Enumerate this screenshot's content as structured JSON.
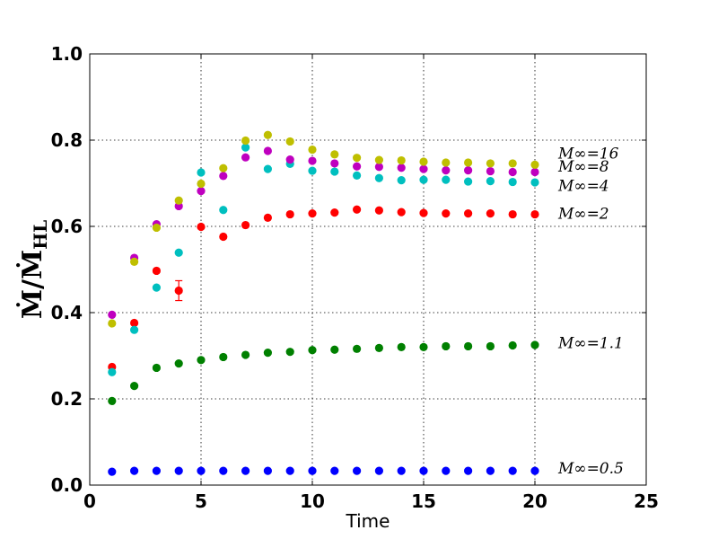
{
  "chart_data": {
    "type": "scatter",
    "xlabel": "Time",
    "ylabel": "Ṁ/Ṁ_HL",
    "ylabel_main": "Ṁ/Ṁ",
    "ylabel_sub": "HL",
    "xlim": [
      0,
      25
    ],
    "ylim": [
      0.0,
      1.0
    ],
    "xticks": [
      0,
      5,
      10,
      15,
      20,
      25
    ],
    "xtick_labels": [
      "0",
      "5",
      "10",
      "15",
      "20",
      "25"
    ],
    "yticks": [
      0.0,
      0.2,
      0.4,
      0.6,
      0.8,
      1.0
    ],
    "ytick_labels": [
      "0.0",
      "0.2",
      "0.4",
      "0.6",
      "0.8",
      "1.0"
    ],
    "grid": true,
    "x": [
      1,
      2,
      3,
      4,
      5,
      6,
      7,
      8,
      9,
      10,
      11,
      12,
      13,
      14,
      15,
      16,
      17,
      18,
      19,
      20
    ],
    "series": [
      {
        "name": "M∞=0.5",
        "color": "#0000ff",
        "label_y": 0.04,
        "values": [
          0.031,
          0.033,
          0.033,
          0.033,
          0.033,
          0.033,
          0.033,
          0.033,
          0.033,
          0.033,
          0.033,
          0.033,
          0.033,
          0.033,
          0.033,
          0.033,
          0.033,
          0.033,
          0.033,
          0.033
        ]
      },
      {
        "name": "M∞=1.1",
        "color": "#008000",
        "label_y": 0.33,
        "values": [
          0.195,
          0.23,
          0.272,
          0.282,
          0.29,
          0.297,
          0.302,
          0.307,
          0.309,
          0.313,
          0.314,
          0.316,
          0.318,
          0.32,
          0.32,
          0.322,
          0.322,
          0.322,
          0.324,
          0.325
        ]
      },
      {
        "name": "M∞=2",
        "color": "#ff0000",
        "label_y": 0.63,
        "values": [
          0.274,
          0.376,
          0.497,
          0.451,
          0.599,
          0.576,
          0.603,
          0.62,
          0.628,
          0.63,
          0.632,
          0.639,
          0.637,
          0.633,
          0.631,
          0.63,
          0.63,
          0.63,
          0.628,
          0.628
        ],
        "error_bars": [
          {
            "x": 4,
            "y": 0.451,
            "err": 0.023
          }
        ]
      },
      {
        "name": "M∞=4",
        "color": "#00bfbf",
        "label_y": 0.695,
        "values": [
          0.262,
          0.36,
          0.458,
          0.539,
          0.725,
          0.638,
          0.783,
          0.733,
          0.745,
          0.729,
          0.727,
          0.718,
          0.712,
          0.707,
          0.708,
          0.708,
          0.704,
          0.705,
          0.703,
          0.702
        ]
      },
      {
        "name": "M∞=8",
        "color": "#bf00bf",
        "label_y": 0.74,
        "values": [
          0.395,
          0.527,
          0.605,
          0.647,
          0.682,
          0.717,
          0.76,
          0.775,
          0.755,
          0.752,
          0.746,
          0.739,
          0.738,
          0.736,
          0.733,
          0.73,
          0.73,
          0.728,
          0.726,
          0.726
        ]
      },
      {
        "name": "M∞=16",
        "color": "#bfbf00",
        "label_y": 0.77,
        "values": [
          0.375,
          0.518,
          0.597,
          0.66,
          0.699,
          0.735,
          0.799,
          0.812,
          0.797,
          0.778,
          0.767,
          0.759,
          0.754,
          0.753,
          0.75,
          0.748,
          0.748,
          0.746,
          0.746,
          0.743
        ]
      }
    ]
  }
}
